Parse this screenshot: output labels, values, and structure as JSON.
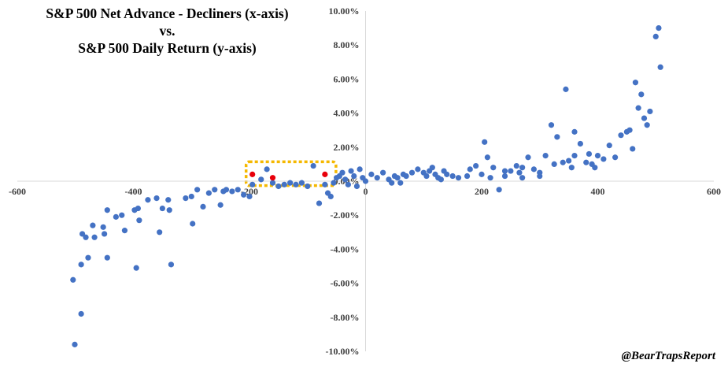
{
  "title_lines": [
    "S&P 500 Net Advance - Decliners (x-axis)",
    "vs.",
    "S&P 500 Daily Return (y-axis)"
  ],
  "watermark": "@BearTrapsReport",
  "colors": {
    "points": "#4472C4",
    "highlight_points": "#E8000B",
    "highlight_box": "#F5B800",
    "axis": "#D9D9D9",
    "tick_text": "#404040"
  },
  "chart_data": {
    "type": "scatter",
    "title": "S&P 500 Net Advance - Decliners (x-axis) vs. S&P 500 Daily Return (y-axis)",
    "xlabel": "",
    "ylabel": "",
    "xlim": [
      -600,
      600
    ],
    "ylim": [
      -10,
      10
    ],
    "x_tick_labels": [
      "-600",
      "-400",
      "-200",
      "0",
      "200",
      "400",
      "600"
    ],
    "y_tick_labels": [
      "10.00%",
      "8.00%",
      "6.00%",
      "4.00%",
      "2.00%",
      "0.00%",
      "-2.00%",
      "-4.00%",
      "-6.00%",
      "-8.00%",
      "-10.00%"
    ],
    "grid": false,
    "series": [
      {
        "points": [
          [
            -501,
            -9.6
          ],
          [
            -504,
            -5.8
          ],
          [
            -490,
            -7.8
          ],
          [
            -490,
            -4.9
          ],
          [
            -488,
            -3.1
          ],
          [
            -482,
            -3.3
          ],
          [
            -478,
            -4.5
          ],
          [
            -470,
            -2.6
          ],
          [
            -467,
            -3.3
          ],
          [
            -452,
            -2.7
          ],
          [
            -450,
            -3.1
          ],
          [
            -445,
            -1.7
          ],
          [
            -430,
            -2.1
          ],
          [
            -420,
            -2.0
          ],
          [
            -415,
            -2.9
          ],
          [
            -445,
            -4.5
          ],
          [
            -395,
            -5.1
          ],
          [
            -392,
            -1.6
          ],
          [
            -390,
            -2.3
          ],
          [
            -398,
            -1.7
          ],
          [
            -375,
            -1.1
          ],
          [
            -360,
            -1.0
          ],
          [
            -355,
            -3.0
          ],
          [
            -350,
            -1.6
          ],
          [
            -340,
            -1.1
          ],
          [
            -338,
            -1.7
          ],
          [
            -335,
            -4.9
          ],
          [
            -310,
            -1.0
          ],
          [
            -300,
            -0.9
          ],
          [
            -298,
            -2.5
          ],
          [
            -290,
            -0.5
          ],
          [
            -280,
            -1.5
          ],
          [
            -270,
            -0.7
          ],
          [
            -260,
            -0.5
          ],
          [
            -250,
            -1.4
          ],
          [
            -245,
            -0.6
          ],
          [
            -240,
            -0.5
          ],
          [
            -230,
            -0.6
          ],
          [
            -220,
            -0.5
          ],
          [
            -210,
            -0.8
          ],
          [
            -200,
            -0.9
          ],
          [
            -195,
            -0.2
          ],
          [
            -180,
            0.1
          ],
          [
            -170,
            0.7
          ],
          [
            -160,
            -0.1
          ],
          [
            -150,
            -0.3
          ],
          [
            -140,
            -0.2
          ],
          [
            -130,
            -0.1
          ],
          [
            -120,
            -0.2
          ],
          [
            -110,
            -0.1
          ],
          [
            -100,
            -0.3
          ],
          [
            -90,
            0.9
          ],
          [
            -80,
            -1.3
          ],
          [
            -70,
            -0.2
          ],
          [
            -65,
            -0.7
          ],
          [
            -60,
            -0.9
          ],
          [
            -55,
            -0.1
          ],
          [
            -50,
            0.2
          ],
          [
            -45,
            0.3
          ],
          [
            -40,
            0.5
          ],
          [
            -35,
            0.1
          ],
          [
            -30,
            -0.2
          ],
          [
            -25,
            0.6
          ],
          [
            -20,
            0.3
          ],
          [
            -15,
            -0.3
          ],
          [
            -10,
            0.7
          ],
          [
            -5,
            0.2
          ],
          [
            0,
            0.0
          ],
          [
            10,
            0.4
          ],
          [
            20,
            0.2
          ],
          [
            30,
            0.5
          ],
          [
            40,
            0.1
          ],
          [
            45,
            -0.1
          ],
          [
            50,
            0.3
          ],
          [
            55,
            0.2
          ],
          [
            60,
            -0.1
          ],
          [
            65,
            0.4
          ],
          [
            70,
            0.3
          ],
          [
            80,
            0.5
          ],
          [
            90,
            0.7
          ],
          [
            100,
            0.5
          ],
          [
            105,
            0.3
          ],
          [
            110,
            0.6
          ],
          [
            115,
            0.8
          ],
          [
            120,
            0.4
          ],
          [
            125,
            0.2
          ],
          [
            130,
            0.1
          ],
          [
            135,
            0.6
          ],
          [
            140,
            0.4
          ],
          [
            150,
            0.3
          ],
          [
            160,
            0.2
          ],
          [
            175,
            0.3
          ],
          [
            180,
            0.7
          ],
          [
            190,
            0.9
          ],
          [
            200,
            0.4
          ],
          [
            205,
            2.3
          ],
          [
            210,
            1.4
          ],
          [
            220,
            0.8
          ],
          [
            230,
            -0.5
          ],
          [
            240,
            0.3
          ],
          [
            250,
            0.6
          ],
          [
            260,
            0.9
          ],
          [
            265,
            0.5
          ],
          [
            270,
            0.2
          ],
          [
            280,
            1.4
          ],
          [
            290,
            0.7
          ],
          [
            300,
            0.3
          ],
          [
            310,
            1.5
          ],
          [
            320,
            3.3
          ],
          [
            325,
            1.0
          ],
          [
            330,
            2.6
          ],
          [
            340,
            1.1
          ],
          [
            345,
            5.4
          ],
          [
            350,
            1.2
          ],
          [
            355,
            0.8
          ],
          [
            360,
            1.5
          ],
          [
            370,
            2.2
          ],
          [
            380,
            1.1
          ],
          [
            385,
            1.6
          ],
          [
            390,
            1.0
          ],
          [
            395,
            0.8
          ],
          [
            400,
            1.5
          ],
          [
            410,
            1.3
          ],
          [
            420,
            2.1
          ],
          [
            430,
            1.4
          ],
          [
            440,
            2.7
          ],
          [
            450,
            2.9
          ],
          [
            455,
            3.0
          ],
          [
            460,
            1.9
          ],
          [
            465,
            5.8
          ],
          [
            470,
            4.3
          ],
          [
            475,
            5.1
          ],
          [
            480,
            3.7
          ],
          [
            485,
            3.3
          ],
          [
            490,
            4.1
          ],
          [
            500,
            8.5
          ],
          [
            505,
            9.0
          ],
          [
            508,
            6.7
          ],
          [
            360,
            2.9
          ],
          [
            300,
            0.5
          ],
          [
            270,
            0.8
          ],
          [
            240,
            0.6
          ],
          [
            215,
            0.2
          ]
        ]
      },
      {
        "points": [
          [
            -195,
            0.4
          ],
          [
            -160,
            0.2
          ],
          [
            -70,
            0.4
          ]
        ]
      }
    ]
  }
}
